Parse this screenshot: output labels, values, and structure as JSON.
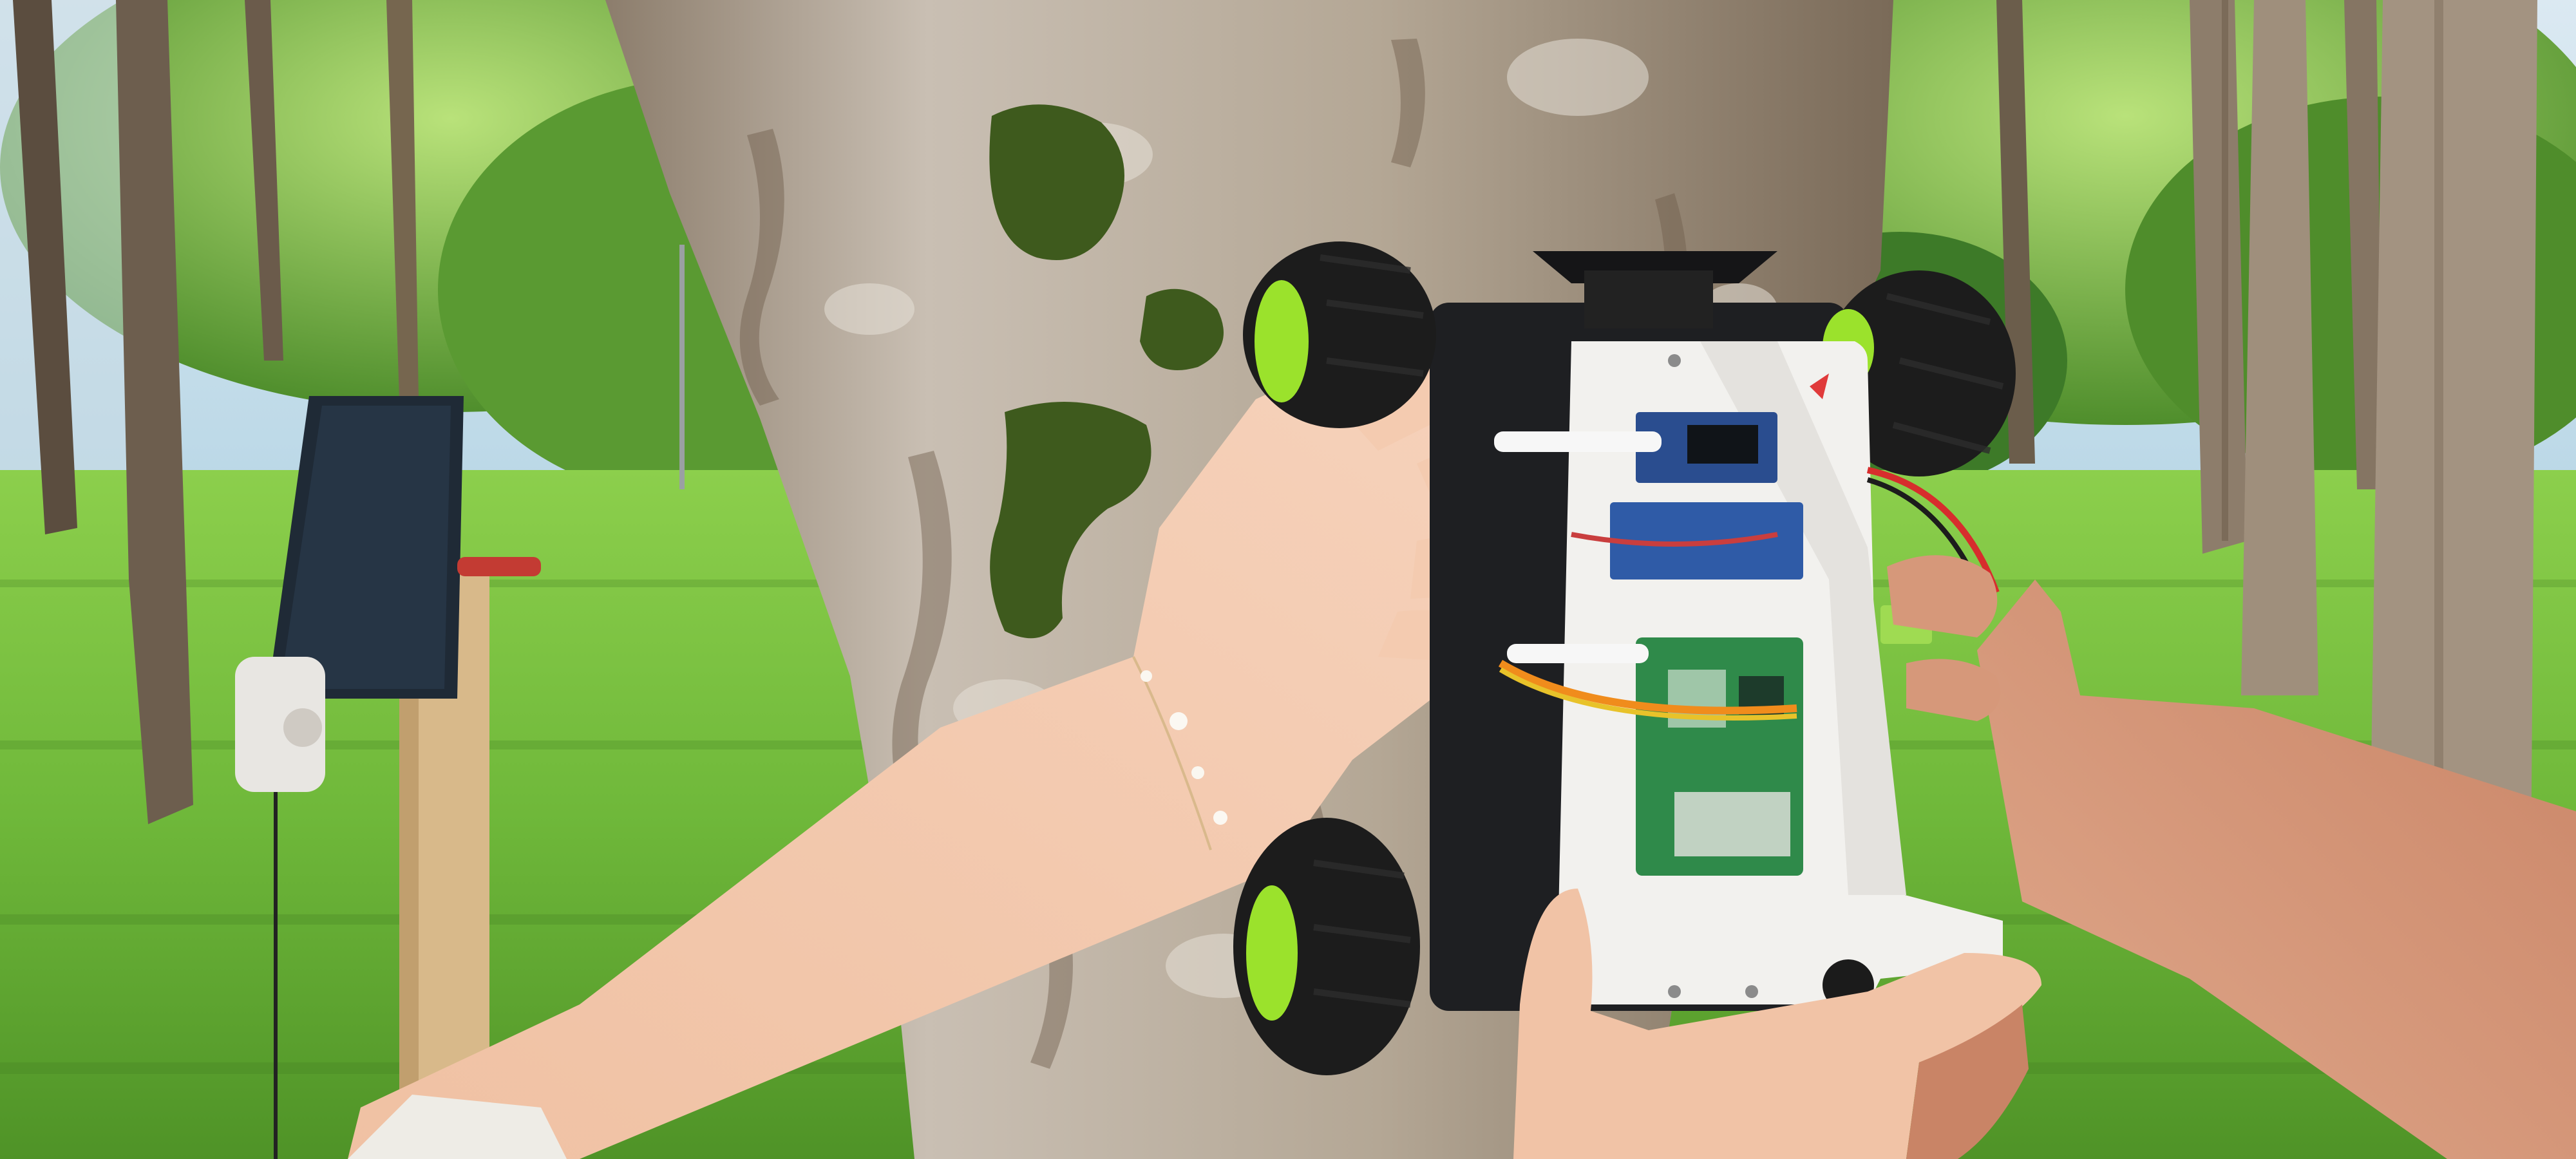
{
  "scene": {
    "colors": {
      "sky": "#cfe3ef",
      "foliage_light": "#a9d86a",
      "foliage_dark": "#3f7d2a",
      "grass": "#6fb83a",
      "grass_dark": "#4e8f26",
      "trunk_bark": "#b9ada0",
      "trunk_dark": "#6a5a4a",
      "moss": "#3d5a1c",
      "chassis_white": "#f2f1ee",
      "tire_black": "#1c1c1c",
      "rim_green": "#9be22c",
      "pcb_blue": "#2a4d8f",
      "pcb_green": "#2f8a4a",
      "skin": "#f3c8ad",
      "skin_right": "#d9987a",
      "solar_panel": "#1f2a36",
      "stake_wood": "#d8b98a"
    },
    "objects": [
      "background-trees",
      "grass-field",
      "central-tree-trunk",
      "climbing-robot",
      "solar-panel-on-stake",
      "left-hand-with-bracelet",
      "right-hand-holding-robot"
    ]
  }
}
